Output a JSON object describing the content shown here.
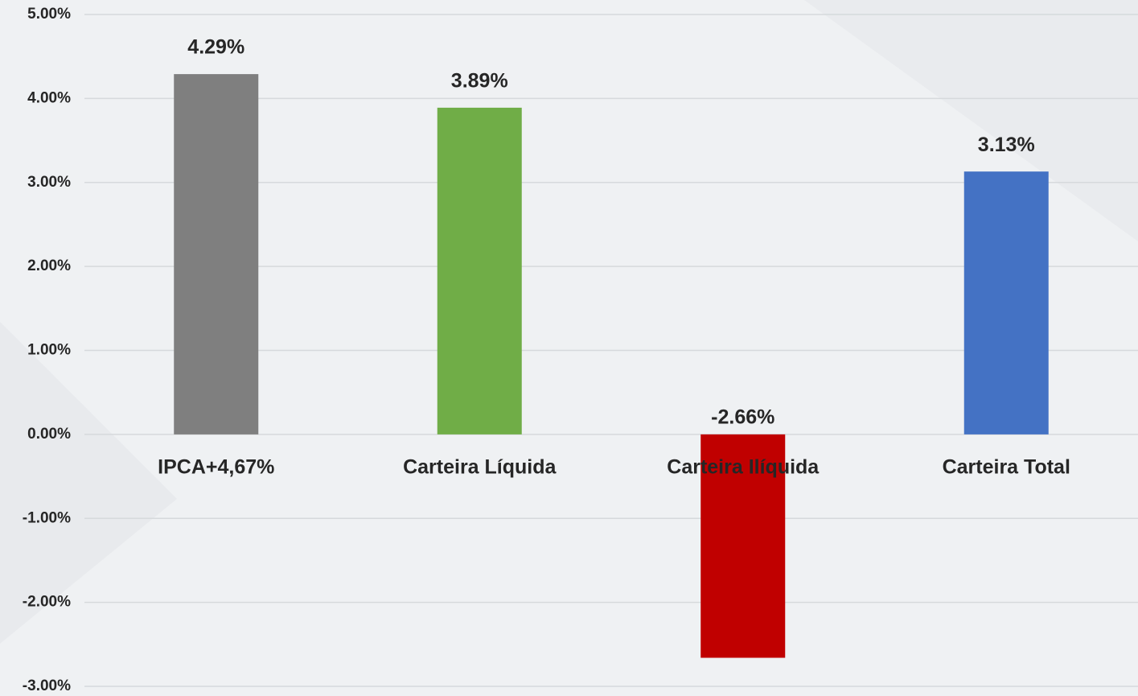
{
  "chart_data": {
    "type": "bar",
    "categories": [
      "IPCA+4,67%",
      "Carteira Líquida",
      "Carteira Ilíquida",
      "Carteira Total"
    ],
    "values": [
      4.29,
      3.89,
      -2.66,
      3.13
    ],
    "value_labels": [
      "4.29%",
      "3.89%",
      "-2.66%",
      "3.13%"
    ],
    "colors": [
      "#7f7f7f",
      "#70ad47",
      "#c00000",
      "#4472c4"
    ],
    "ylim": [
      -3,
      5
    ],
    "yticks": [
      {
        "value": -3,
        "label": "-3.00%"
      },
      {
        "value": -2,
        "label": "-2.00%"
      },
      {
        "value": -1,
        "label": "-1.00%"
      },
      {
        "value": 0,
        "label": "0.00%"
      },
      {
        "value": 1,
        "label": "1.00%"
      },
      {
        "value": 2,
        "label": "2.00%"
      },
      {
        "value": 3,
        "label": "3.00%"
      },
      {
        "value": 4,
        "label": "4.00%"
      },
      {
        "value": 5,
        "label": "5.00%"
      }
    ],
    "grid": true
  }
}
